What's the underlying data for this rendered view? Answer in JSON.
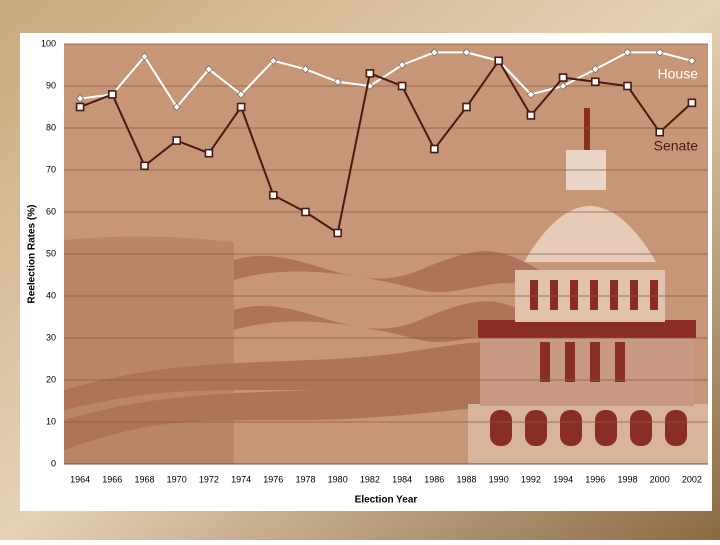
{
  "chart_data": {
    "type": "line",
    "x_label": "Election Year",
    "y_label": "Reelection Rates (%)",
    "categories": [
      "1964",
      "1966",
      "1968",
      "1970",
      "1972",
      "1974",
      "1976",
      "1978",
      "1980",
      "1982",
      "1984",
      "1986",
      "1988",
      "1990",
      "1992",
      "1994",
      "1996",
      "1998",
      "2000",
      "2002"
    ],
    "series": [
      {
        "name": "House",
        "color": "#ffffff",
        "marker": "diamond",
        "values": [
          87,
          88,
          97,
          85,
          94,
          88,
          96,
          94,
          91,
          90,
          95,
          98,
          98,
          96,
          88,
          90,
          94,
          98,
          98,
          96
        ]
      },
      {
        "name": "Senate",
        "color": "#4a1a12",
        "marker": "square",
        "values": [
          85,
          88,
          71,
          77,
          74,
          85,
          64,
          60,
          55,
          93,
          90,
          75,
          85,
          96,
          83,
          92,
          91,
          90,
          79,
          86
        ]
      }
    ],
    "ylim": [
      0,
      100
    ],
    "yticks": [
      0,
      10,
      20,
      30,
      40,
      50,
      60,
      70,
      80,
      90,
      100
    ],
    "grid": true
  }
}
